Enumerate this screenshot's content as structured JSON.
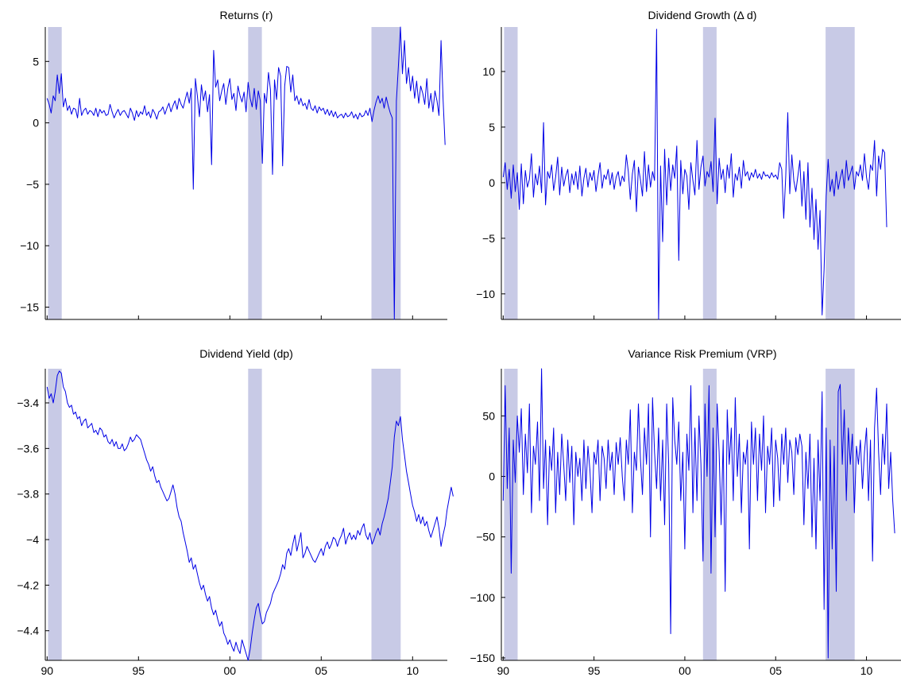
{
  "chart_data": [
    {
      "type": "line",
      "title": "Returns (r)",
      "xlim": [
        1989.9,
        2011.9
      ],
      "ylim": [
        -16,
        7.8
      ],
      "xticks": [
        1990,
        1995,
        2000,
        2005,
        2010
      ],
      "xtick_labels": [
        "90",
        "95",
        "00",
        "05",
        "10"
      ],
      "yticks": [
        -15,
        -10,
        -5,
        0,
        5
      ],
      "ytick_labels": [
        "−15",
        "−10",
        "−5",
        "0",
        "5"
      ],
      "recession_bands": [
        [
          1990.05,
          1990.8
        ],
        [
          2001.0,
          2001.75
        ],
        [
          2007.75,
          2009.35
        ]
      ],
      "series_key": "r",
      "series": [
        {
          "values": [
            2.0,
            1.5,
            0.8,
            2.2,
            1.8,
            3.9,
            2.4,
            4.0,
            1.3,
            2.0,
            1.0,
            1.4,
            0.7,
            1.2,
            1.1,
            0.4,
            2.0,
            0.6,
            1.0,
            1.2,
            0.7,
            1.0,
            0.9,
            0.6,
            1.2,
            0.5,
            1.1,
            0.8,
            1.0,
            0.6,
            0.7,
            1.5,
            0.9,
            0.4,
            0.8,
            1.1,
            0.6,
            0.9,
            1.0,
            0.7,
            0.4,
            1.2,
            0.8,
            0.2,
            1.0,
            0.5,
            0.9,
            0.7,
            1.4,
            0.6,
            0.9,
            0.4,
            1.1,
            0.8,
            0.3,
            0.9,
            1.0,
            1.3,
            0.7,
            1.2,
            1.6,
            0.9,
            1.4,
            1.8,
            1.1,
            2.0,
            1.5,
            1.2,
            1.9,
            2.5,
            1.6,
            2.8,
            -5.4,
            3.6,
            2.2,
            0.5,
            3.1,
            1.8,
            2.6,
            0.9,
            2.3,
            -3.4,
            5.9,
            2.9,
            3.5,
            1.8,
            2.6,
            3.2,
            1.5,
            2.8,
            3.6,
            1.9,
            2.4,
            1.0,
            3.0,
            2.2,
            1.7,
            2.5,
            0.9,
            3.3,
            2.0,
            1.3,
            2.8,
            1.1,
            2.6,
            1.8,
            -3.3,
            2.4,
            1.6,
            4.1,
            2.7,
            -4.2,
            3.5,
            1.9,
            4.5,
            3.8,
            -3.5,
            3.0,
            4.6,
            4.5,
            2.5,
            3.9,
            1.8,
            2.2,
            1.5,
            2.0,
            1.4,
            1.6,
            1.1,
            1.9,
            1.2,
            1.0,
            1.4,
            0.8,
            1.3,
            1.0,
            1.2,
            0.7,
            1.1,
            0.6,
            1.0,
            0.5,
            0.9,
            0.4,
            0.6,
            0.7,
            0.4,
            0.8,
            0.5,
            0.6,
            0.9,
            0.4,
            0.7,
            0.3,
            0.8,
            0.5,
            0.6,
            1.0,
            0.6,
            1.2,
            0.1,
            1.0,
            1.7,
            2.2,
            1.6,
            2.0,
            1.2,
            2.1,
            1.4,
            0.8,
            0.4,
            -16.0,
            1.8,
            4.6,
            7.8,
            4.0,
            6.7,
            3.2,
            4.5,
            2.6,
            3.8,
            2.0,
            3.4,
            1.6,
            3.0,
            2.4,
            1.5,
            3.6,
            1.2,
            2.4,
            0.9,
            2.6,
            1.8,
            0.6,
            6.7,
            2.0,
            -1.8
          ]
        }
      ]
    },
    {
      "type": "line",
      "title": "Dividend Growth (Δ d)",
      "xlim": [
        1989.9,
        2011.9
      ],
      "ylim": [
        -12.3,
        14
      ],
      "xticks": [
        1990,
        1995,
        2000,
        2005,
        2010
      ],
      "xtick_labels": [
        "90",
        "95",
        "00",
        "05",
        "10"
      ],
      "yticks": [
        -10,
        -5,
        0,
        5,
        10
      ],
      "ytick_labels": [
        "−10",
        "−5",
        "0",
        "5",
        "10"
      ],
      "recession_bands": [
        [
          1990.05,
          1990.8
        ],
        [
          2001.0,
          2001.75
        ],
        [
          2007.75,
          2009.35
        ]
      ],
      "series_key": "dd",
      "series": [
        {
          "values": [
            0.5,
            1.8,
            -0.6,
            1.2,
            -1.4,
            1.6,
            -0.8,
            0.9,
            -2.4,
            1.7,
            -1.9,
            1.1,
            -0.4,
            0.3,
            2.6,
            -1.3,
            0.8,
            -0.2,
            1.5,
            -0.9,
            5.4,
            -2.0,
            1.0,
            0.4,
            1.6,
            -0.7,
            0.5,
            2.3,
            -1.1,
            1.4,
            -0.3,
            0.6,
            1.2,
            -0.9,
            0.8,
            -0.2,
            1.0,
            -0.6,
            1.5,
            -1.2,
            0.4,
            1.3,
            -0.4,
            0.9,
            0.2,
            1.1,
            -0.8,
            0.6,
            1.8,
            -0.5,
            0.7,
            0.3,
            1.2,
            -0.2,
            0.9,
            -0.6,
            0.5,
            1.0,
            -0.3,
            0.6,
            0.1,
            2.5,
            1.0,
            -1.5,
            0.8,
            2.0,
            -2.6,
            1.4,
            0.3,
            -1.2,
            2.8,
            -0.8,
            1.6,
            -0.4,
            1.0,
            0.2,
            13.8,
            -12.3,
            1.5,
            -5.3,
            3.0,
            -2.0,
            2.2,
            -0.7,
            1.6,
            0.4,
            3.3,
            -7.0,
            2.0,
            -1.0,
            1.2,
            0.6,
            -2.4,
            1.8,
            0.2,
            -1.1,
            3.8,
            -0.6,
            1.4,
            2.4,
            -0.3,
            1.0,
            0.5,
            1.9,
            -0.8,
            5.8,
            -1.9,
            2.2,
            0.3,
            1.2,
            -0.9,
            1.6,
            0.4,
            2.6,
            -1.3,
            0.8,
            0.2,
            1.4,
            -0.5,
            2.0,
            0.6,
            1.0,
            0.2,
            0.9,
            0.5,
            1.2,
            0.4,
            0.8,
            0.3,
            1.0,
            0.6,
            0.7,
            0.4,
            0.9,
            0.5,
            0.7,
            0.3,
            1.8,
            1.2,
            -3.2,
            0.5,
            6.3,
            -1.0,
            2.5,
            0.2,
            -0.8,
            0.6,
            2.0,
            -2.1,
            1.0,
            -3.3,
            1.8,
            -4.0,
            -0.5,
            -5.1,
            -1.5,
            -6.0,
            -2.5,
            -11.9,
            -7.8,
            -1.2,
            2.1,
            -0.8,
            0.3,
            -1.2,
            1.0,
            -0.6,
            0.4,
            1.2,
            -0.5,
            2.0,
            0.2,
            0.8,
            1.5,
            -0.6,
            1.0,
            0.6,
            1.6,
            0.2,
            2.6,
            0.5,
            -0.6,
            1.6,
            1.1,
            3.8,
            -1.2,
            2.4,
            1.2,
            3.0,
            2.7,
            -4.0
          ]
        }
      ]
    },
    {
      "type": "line",
      "title": "Dividend Yield (dp)",
      "xlim": [
        1989.9,
        2011.9
      ],
      "ylim": [
        -4.53,
        -3.25
      ],
      "xticks": [
        1990,
        1995,
        2000,
        2005,
        2010
      ],
      "xtick_labels": [
        "90",
        "95",
        "00",
        "05",
        "10"
      ],
      "yticks": [
        -4.4,
        -4.2,
        -4.0,
        -3.8,
        -3.6,
        -3.4
      ],
      "ytick_labels": [
        "−4.4",
        "−4.2",
        "−4",
        "−3.8",
        "−3.6",
        "−3.4"
      ],
      "recession_bands": [
        [
          1990.05,
          1990.8
        ],
        [
          2001.0,
          2001.75
        ],
        [
          2007.75,
          2009.35
        ]
      ],
      "series_key": "dp",
      "series": [
        {
          "values": [
            -3.33,
            -3.38,
            -3.36,
            -3.4,
            -3.35,
            -3.28,
            -3.26,
            -3.27,
            -3.33,
            -3.35,
            -3.4,
            -3.42,
            -3.41,
            -3.45,
            -3.44,
            -3.47,
            -3.46,
            -3.5,
            -3.48,
            -3.47,
            -3.51,
            -3.5,
            -3.49,
            -3.53,
            -3.52,
            -3.54,
            -3.51,
            -3.52,
            -3.55,
            -3.54,
            -3.57,
            -3.58,
            -3.56,
            -3.59,
            -3.57,
            -3.6,
            -3.6,
            -3.58,
            -3.61,
            -3.6,
            -3.58,
            -3.55,
            -3.57,
            -3.56,
            -3.54,
            -3.55,
            -3.56,
            -3.59,
            -3.62,
            -3.65,
            -3.67,
            -3.7,
            -3.68,
            -3.72,
            -3.75,
            -3.74,
            -3.77,
            -3.79,
            -3.81,
            -3.83,
            -3.82,
            -3.79,
            -3.76,
            -3.8,
            -3.86,
            -3.9,
            -3.92,
            -3.97,
            -4.01,
            -4.05,
            -4.1,
            -4.08,
            -4.13,
            -4.11,
            -4.15,
            -4.19,
            -4.22,
            -4.2,
            -4.24,
            -4.27,
            -4.25,
            -4.3,
            -4.33,
            -4.31,
            -4.35,
            -4.38,
            -4.36,
            -4.41,
            -4.43,
            -4.46,
            -4.44,
            -4.47,
            -4.49,
            -4.45,
            -4.48,
            -4.5,
            -4.44,
            -4.47,
            -4.5,
            -4.53,
            -4.48,
            -4.41,
            -4.35,
            -4.3,
            -4.28,
            -4.33,
            -4.37,
            -4.36,
            -4.32,
            -4.3,
            -4.28,
            -4.24,
            -4.22,
            -4.2,
            -4.18,
            -4.15,
            -4.11,
            -4.13,
            -4.06,
            -4.04,
            -4.07,
            -4.02,
            -3.98,
            -4.05,
            -4.01,
            -3.97,
            -4.08,
            -4.06,
            -4.03,
            -4.05,
            -4.07,
            -4.09,
            -4.1,
            -4.08,
            -4.06,
            -4.04,
            -4.07,
            -4.03,
            -4.01,
            -4.04,
            -4.02,
            -3.99,
            -4.0,
            -4.03,
            -4.0,
            -3.98,
            -3.95,
            -4.02,
            -3.99,
            -3.97,
            -4.0,
            -3.98,
            -4.0,
            -3.96,
            -3.98,
            -3.95,
            -3.93,
            -3.98,
            -4.0,
            -3.97,
            -4.02,
            -4.0,
            -3.97,
            -3.95,
            -3.98,
            -3.93,
            -3.9,
            -3.86,
            -3.82,
            -3.75,
            -3.68,
            -3.55,
            -3.48,
            -3.5,
            -3.46,
            -3.56,
            -3.63,
            -3.7,
            -3.75,
            -3.8,
            -3.85,
            -3.88,
            -3.92,
            -3.89,
            -3.93,
            -3.9,
            -3.94,
            -3.92,
            -3.96,
            -3.99,
            -3.96,
            -3.93,
            -3.9,
            -3.95,
            -4.03,
            -3.98,
            -3.94,
            -3.87,
            -3.82,
            -3.77,
            -3.81
          ]
        }
      ]
    },
    {
      "type": "line",
      "title": "Variance Risk Premium (VRP)",
      "xlim": [
        1989.9,
        2011.9
      ],
      "ylim": [
        -152,
        89
      ],
      "xticks": [
        1990,
        1995,
        2000,
        2005,
        2010
      ],
      "xtick_labels": [
        "90",
        "95",
        "00",
        "05",
        "10"
      ],
      "yticks": [
        -150,
        -100,
        -50,
        0,
        50
      ],
      "ytick_labels": [
        "−150",
        "−100",
        "−50",
        "0",
        "50"
      ],
      "recession_bands": [
        [
          1990.05,
          1990.8
        ],
        [
          2001.0,
          2001.75
        ],
        [
          2007.75,
          2009.35
        ]
      ],
      "series_key": "vrp",
      "series": [
        {
          "values": [
            -20.0,
            75.0,
            -10.0,
            40.0,
            -80.0,
            30.0,
            -5.0,
            50.0,
            20.0,
            56.0,
            -15.0,
            35.0,
            3.0,
            60.0,
            -30.0,
            25.0,
            10.0,
            45.0,
            -20.0,
            89.0,
            -10.0,
            30.0,
            -40.0,
            25.0,
            5.0,
            40.0,
            -30.0,
            20.0,
            -15.0,
            35.0,
            10.0,
            -20.0,
            30.0,
            -5.0,
            25.0,
            -40.0,
            20.0,
            0.0,
            15.0,
            -20.0,
            30.0,
            -10.0,
            25.0,
            5.0,
            -30.0,
            20.0,
            10.0,
            30.0,
            -20.0,
            25.0,
            15.0,
            -10.0,
            30.0,
            5.0,
            20.0,
            -15.0,
            28.0,
            10.0,
            32.0,
            0.0,
            -20.0,
            30.0,
            10.0,
            55.0,
            -30.0,
            20.0,
            5.0,
            60.0,
            15.0,
            -15.0,
            40.0,
            10.0,
            60.0,
            -50.0,
            65.0,
            20.0,
            -10.0,
            40.0,
            -20.0,
            30.0,
            -40.0,
            60.0,
            10.0,
            -130.0,
            65.0,
            30.0,
            10.0,
            45.0,
            -20.0,
            20.0,
            -60.0,
            35.0,
            5.0,
            75.0,
            -30.0,
            40.0,
            -20.0,
            50.0,
            10.0,
            -70.0,
            60.0,
            0.0,
            75.0,
            -80.0,
            40.0,
            -50.0,
            60.0,
            20.0,
            -40.0,
            30.0,
            -95.0,
            55.0,
            10.0,
            40.0,
            -20.0,
            65.0,
            0.0,
            35.0,
            -30.0,
            20.0,
            10.0,
            30.0,
            -60.0,
            45.0,
            10.0,
            40.0,
            -20.0,
            35.0,
            5.0,
            50.0,
            -30.0,
            25.0,
            10.0,
            40.0,
            -25.0,
            30.0,
            15.0,
            -20.0,
            35.0,
            10.0,
            40.0,
            -5.0,
            30.0,
            20.0,
            -15.0,
            32.0,
            18.0,
            35.0,
            25.0,
            -40.0,
            20.0,
            -10.0,
            35.0,
            -50.0,
            15.0,
            -60.0,
            30.0,
            -20.0,
            70.0,
            -110.0,
            40.0,
            -150.0,
            30.0,
            -60.0,
            25.0,
            -95.0,
            70.0,
            76.0,
            10.0,
            55.0,
            -20.0,
            40.0,
            10.0,
            35.0,
            -30.0,
            25.0,
            10.0,
            30.0,
            -10.0,
            20.0,
            40.0,
            -20.0,
            30.0,
            -70.0,
            40.0,
            73.0,
            20.0,
            -15.0,
            35.0,
            10.0,
            60.0,
            -10.0,
            20.0,
            -20.0,
            -47.0
          ]
        }
      ]
    }
  ]
}
